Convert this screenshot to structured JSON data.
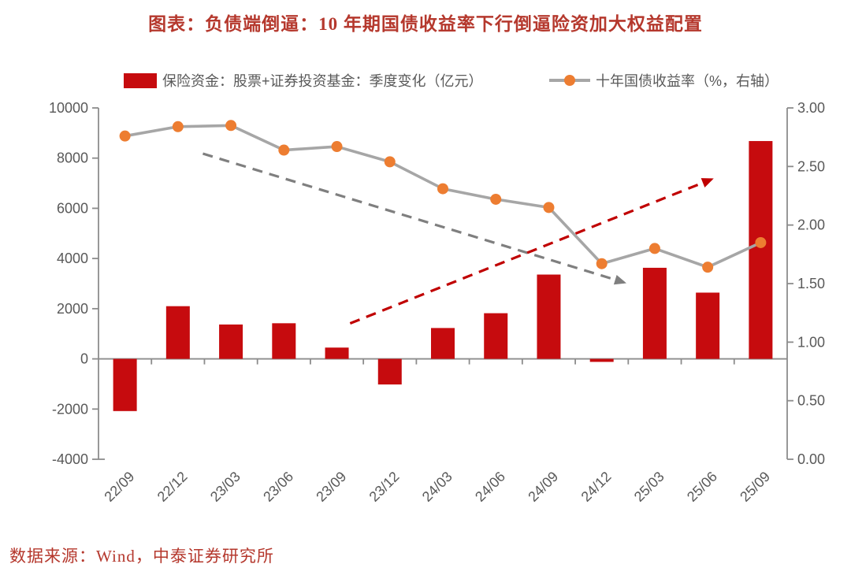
{
  "title": "图表：负债端倒逼：10 年期国债收益率下行倒逼险资加大权益配置",
  "source": "数据来源：Wind，中泰证券研究所",
  "legend": [
    {
      "label": "保险资金：股票+证券投资基金：季度变化（亿元）",
      "marker": "red-bar-swatch"
    },
    {
      "label": "十年国债收益率（%，右轴）",
      "marker": "orange-dot-on-gray-line"
    }
  ],
  "colors": {
    "bar": "#C60B0E",
    "line": "#A6A6A6",
    "marker": "#ED7D31",
    "title": "#B5382D",
    "source": "#B5382D",
    "axis_text": "#595959",
    "axis_line": "#8C8C8C",
    "arrow_gray": "#7F7F7F",
    "arrow_red": "#C00000"
  },
  "chart_data": {
    "type": "combo",
    "title": "图表：负债端倒逼：10 年期国债收益率下行倒逼险资加大权益配置",
    "grid": false,
    "legend_position": "top",
    "categories": [
      "22/09",
      "22/12",
      "23/03",
      "23/06",
      "23/09",
      "23/12",
      "24/03",
      "24/06",
      "24/09",
      "24/12",
      "25/03",
      "25/06",
      "25/09"
    ],
    "series": [
      {
        "name": "保险资金：股票+证券投资基金：季度变化（亿元）",
        "type": "bar",
        "axis": "left",
        "values": [
          -2080,
          2100,
          1370,
          1420,
          450,
          -1020,
          1230,
          1820,
          3360,
          -120,
          3630,
          2640,
          8680
        ]
      },
      {
        "name": "十年国债收益率（%，右轴）",
        "type": "line",
        "axis": "right",
        "values": [
          2.76,
          2.84,
          2.85,
          2.64,
          2.67,
          2.54,
          2.31,
          2.22,
          2.15,
          1.67,
          1.8,
          1.64,
          1.85
        ]
      }
    ],
    "left_axis": {
      "min": -4000,
      "max": 10000,
      "tick_values": [
        10000,
        8000,
        6000,
        4000,
        2000,
        0,
        -2000,
        -4000
      ],
      "tick_labels": [
        "10000",
        "8000",
        "6000",
        "4000",
        "2000",
        "0",
        "-2000",
        "-4000"
      ]
    },
    "right_axis": {
      "min": 0,
      "max": 3,
      "tick_values": [
        3,
        2.5,
        2,
        1.5,
        1,
        0.5,
        0
      ],
      "tick_labels": [
        "3.00",
        "2.50",
        "2.00",
        "1.50",
        "1.00",
        "0.50",
        "0.00"
      ]
    },
    "annotations": [
      {
        "id": "downtrend-dashed-arrow",
        "style": "dashed",
        "axis": "right",
        "color": "#7F7F7F",
        "from": {
          "x": 1.47,
          "y": 2.61
        },
        "to": {
          "x": 9.42,
          "y": 1.51
        }
      },
      {
        "id": "uptrend-dashed-arrow",
        "style": "dashed",
        "axis": "right",
        "color": "#C00000",
        "from": {
          "x": 4.25,
          "y": 1.16
        },
        "to": {
          "x": 11.07,
          "y": 2.39
        }
      }
    ]
  }
}
